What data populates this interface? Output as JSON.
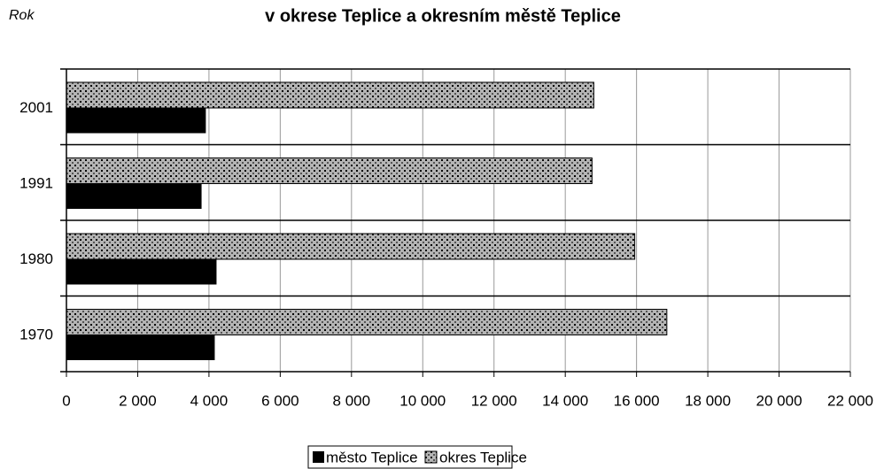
{
  "chart_data": {
    "type": "barh",
    "title": "v okrese Teplice a okresním městě Teplice",
    "y_label": "Rok",
    "categories": [
      "2001",
      "1991",
      "1980",
      "1970"
    ],
    "series": [
      {
        "name": "město Teplice",
        "color": "#000000",
        "values": [
          3900,
          3780,
          4200,
          4150
        ]
      },
      {
        "name": "okres Teplice",
        "color": "#b4b4b4",
        "values": [
          14800,
          14750,
          15950,
          16850
        ]
      }
    ],
    "xlim": [
      0,
      22000
    ],
    "xticks": [
      0,
      {
        "value": 2000,
        "label": "2 000"
      },
      {
        "value": 4000,
        "label": "4 000"
      },
      {
        "value": 6000,
        "label": "6 000"
      },
      {
        "value": 8000,
        "label": "8 000"
      },
      {
        "value": 10000,
        "label": "10 000"
      },
      {
        "value": 12000,
        "label": "12 000"
      },
      {
        "value": 14000,
        "label": "14 000"
      },
      {
        "value": 16000,
        "label": "16 000"
      },
      {
        "value": 18000,
        "label": "18 000"
      },
      {
        "value": 20000,
        "label": "20 000"
      },
      {
        "value": 22000,
        "label": "22 000"
      }
    ],
    "grid": true,
    "legend": "bottom"
  }
}
